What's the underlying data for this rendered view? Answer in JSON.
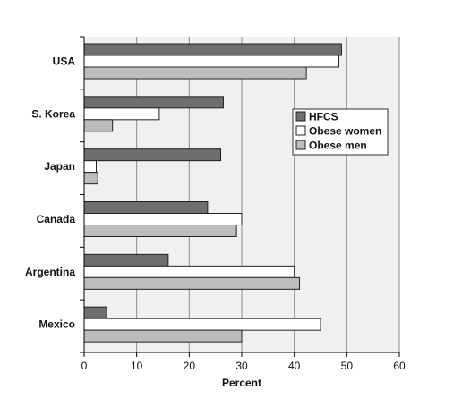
{
  "chart_data": {
    "type": "bar",
    "orientation": "horizontal",
    "categories": [
      "USA",
      "S. Korea",
      "Japan",
      "Canada",
      "Argentina",
      "Mexico"
    ],
    "series": [
      {
        "name": "HFCS",
        "color": "#6e6e6e",
        "values": [
          49,
          26.5,
          26,
          23.5,
          16,
          4.3
        ]
      },
      {
        "name": "Obese women",
        "color": "#ffffff",
        "values": [
          48.5,
          14.3,
          2.3,
          30,
          40,
          45
        ]
      },
      {
        "name": "Obese men",
        "color": "#bdbdbd",
        "values": [
          42.3,
          5.4,
          2.6,
          29,
          41,
          30
        ]
      }
    ],
    "xlabel": "Percent",
    "ylabel": "",
    "title": "",
    "xlim": [
      0,
      60
    ],
    "xticks": [
      0,
      10,
      20,
      30,
      40,
      50,
      60
    ],
    "grid": "vertical",
    "legend_position": "right"
  }
}
